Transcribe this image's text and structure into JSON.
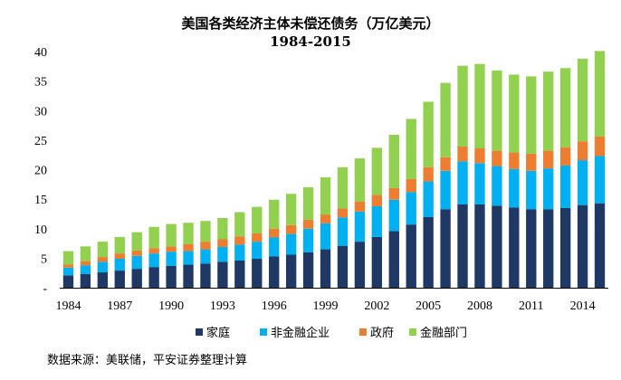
{
  "chart_data": {
    "type": "bar",
    "stacked": true,
    "title": "美国各类经济主体未偿还债务（万亿美元）",
    "subtitle": "1984-2015",
    "x": [
      1984,
      1985,
      1986,
      1987,
      1988,
      1989,
      1990,
      1991,
      1992,
      1993,
      1994,
      1995,
      1996,
      1997,
      1998,
      1999,
      2000,
      2001,
      2002,
      2003,
      2004,
      2005,
      2006,
      2007,
      2008,
      2009,
      2010,
      2011,
      2012,
      2013,
      2014,
      2015
    ],
    "xtick_labels": [
      "1984",
      "1987",
      "1990",
      "1993",
      "1996",
      "1999",
      "2002",
      "2005",
      "2008",
      "2011",
      "2014"
    ],
    "ylim": [
      0,
      40
    ],
    "ytick_labels": [
      "-",
      "5",
      "10",
      "15",
      "20",
      "25",
      "30",
      "35",
      "40"
    ],
    "series": [
      {
        "name": "家庭",
        "color": "#1f3864",
        "values": [
          2.1,
          2.3,
          2.6,
          2.9,
          3.2,
          3.5,
          3.7,
          3.9,
          4.1,
          4.4,
          4.6,
          4.9,
          5.3,
          5.6,
          6.0,
          6.5,
          7.1,
          7.8,
          8.6,
          9.6,
          10.7,
          12.0,
          13.3,
          14.1,
          14.1,
          13.9,
          13.6,
          13.3,
          13.3,
          13.5,
          14.0,
          14.3
        ]
      },
      {
        "name": "非金融企业",
        "color": "#00b0f0",
        "values": [
          1.3,
          1.5,
          1.8,
          2.0,
          2.2,
          2.3,
          2.4,
          2.3,
          2.4,
          2.5,
          2.7,
          2.9,
          3.2,
          3.5,
          4.0,
          4.4,
          4.8,
          5.1,
          5.2,
          5.3,
          5.5,
          6.0,
          6.5,
          7.3,
          7.0,
          6.7,
          6.5,
          6.5,
          6.9,
          7.2,
          7.6,
          8.0
        ]
      },
      {
        "name": "政府",
        "color": "#ed7d31",
        "values": [
          0.5,
          0.7,
          0.8,
          0.9,
          0.9,
          0.9,
          0.9,
          1.2,
          1.3,
          1.3,
          1.4,
          1.4,
          1.5,
          1.5,
          1.5,
          1.5,
          1.5,
          1.7,
          1.9,
          2.0,
          2.2,
          2.4,
          2.3,
          2.5,
          2.5,
          2.6,
          2.8,
          2.9,
          3.0,
          3.1,
          3.2,
          3.3
        ]
      },
      {
        "name": "金融部门",
        "color": "#92d050",
        "values": [
          2.3,
          2.5,
          2.6,
          2.8,
          3.1,
          3.6,
          3.8,
          3.6,
          3.5,
          3.6,
          4.1,
          4.5,
          4.9,
          5.3,
          5.5,
          6.3,
          7.0,
          7.3,
          8.0,
          9.0,
          10.2,
          11.1,
          12.6,
          13.7,
          14.3,
          13.6,
          13.2,
          13.1,
          13.4,
          13.4,
          14.0,
          14.5
        ]
      }
    ],
    "legend_position": "bottom",
    "grid": false
  },
  "source_note": "数据来源：美联储，平安证券整理计算"
}
